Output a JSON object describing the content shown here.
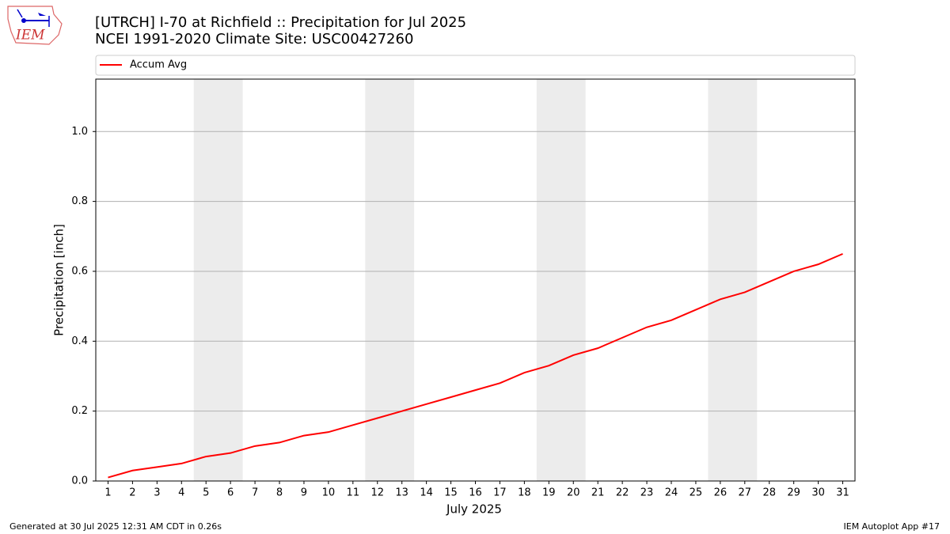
{
  "chart_data": {
    "type": "line",
    "title": "[UTRCH] I-70 at Richfield  :: Precipitation for Jul 2025",
    "subtitle": "NCEI 1991-2020 Climate Site: USC00427260",
    "xlabel": "July 2025",
    "ylabel": "Precipitation [inch]",
    "x": [
      1,
      2,
      3,
      4,
      5,
      6,
      7,
      8,
      9,
      10,
      11,
      12,
      13,
      14,
      15,
      16,
      17,
      18,
      19,
      20,
      21,
      22,
      23,
      24,
      25,
      26,
      27,
      28,
      29,
      30,
      31
    ],
    "series": [
      {
        "name": "Accum Avg",
        "color": "#ff0000",
        "values": [
          0.01,
          0.03,
          0.04,
          0.05,
          0.07,
          0.08,
          0.1,
          0.11,
          0.13,
          0.14,
          0.16,
          0.18,
          0.2,
          0.22,
          0.24,
          0.26,
          0.28,
          0.31,
          0.33,
          0.36,
          0.38,
          0.41,
          0.44,
          0.46,
          0.49,
          0.52,
          0.54,
          0.57,
          0.6,
          0.62,
          0.65
        ]
      }
    ],
    "xlim": [
      0.5,
      31.5
    ],
    "xticks": [
      1,
      2,
      3,
      4,
      5,
      6,
      7,
      8,
      9,
      10,
      11,
      12,
      13,
      14,
      15,
      16,
      17,
      18,
      19,
      20,
      21,
      22,
      23,
      24,
      25,
      26,
      27,
      28,
      29,
      30,
      31
    ],
    "ylim": [
      0,
      1.15
    ],
    "yticks": [
      {
        "value": 0,
        "label": "0.0"
      },
      {
        "value": 0.2,
        "label": "0.2"
      },
      {
        "value": 0.4,
        "label": "0.4"
      },
      {
        "value": 0.6,
        "label": "0.6"
      },
      {
        "value": 0.8,
        "label": "0.8"
      },
      {
        "value": 1,
        "label": "1.0"
      }
    ],
    "grid": true,
    "weekend_bands": [
      [
        4.5,
        6.5
      ],
      [
        11.5,
        13.5
      ],
      [
        18.5,
        20.5
      ],
      [
        25.5,
        27.5
      ]
    ],
    "band_color": "#ececec",
    "legend": "top"
  },
  "logo_text": "IEM",
  "footer_left": "Generated at 30 Jul 2025 12:31 AM CDT in 0.26s",
  "footer_right": "IEM Autoplot App #17"
}
